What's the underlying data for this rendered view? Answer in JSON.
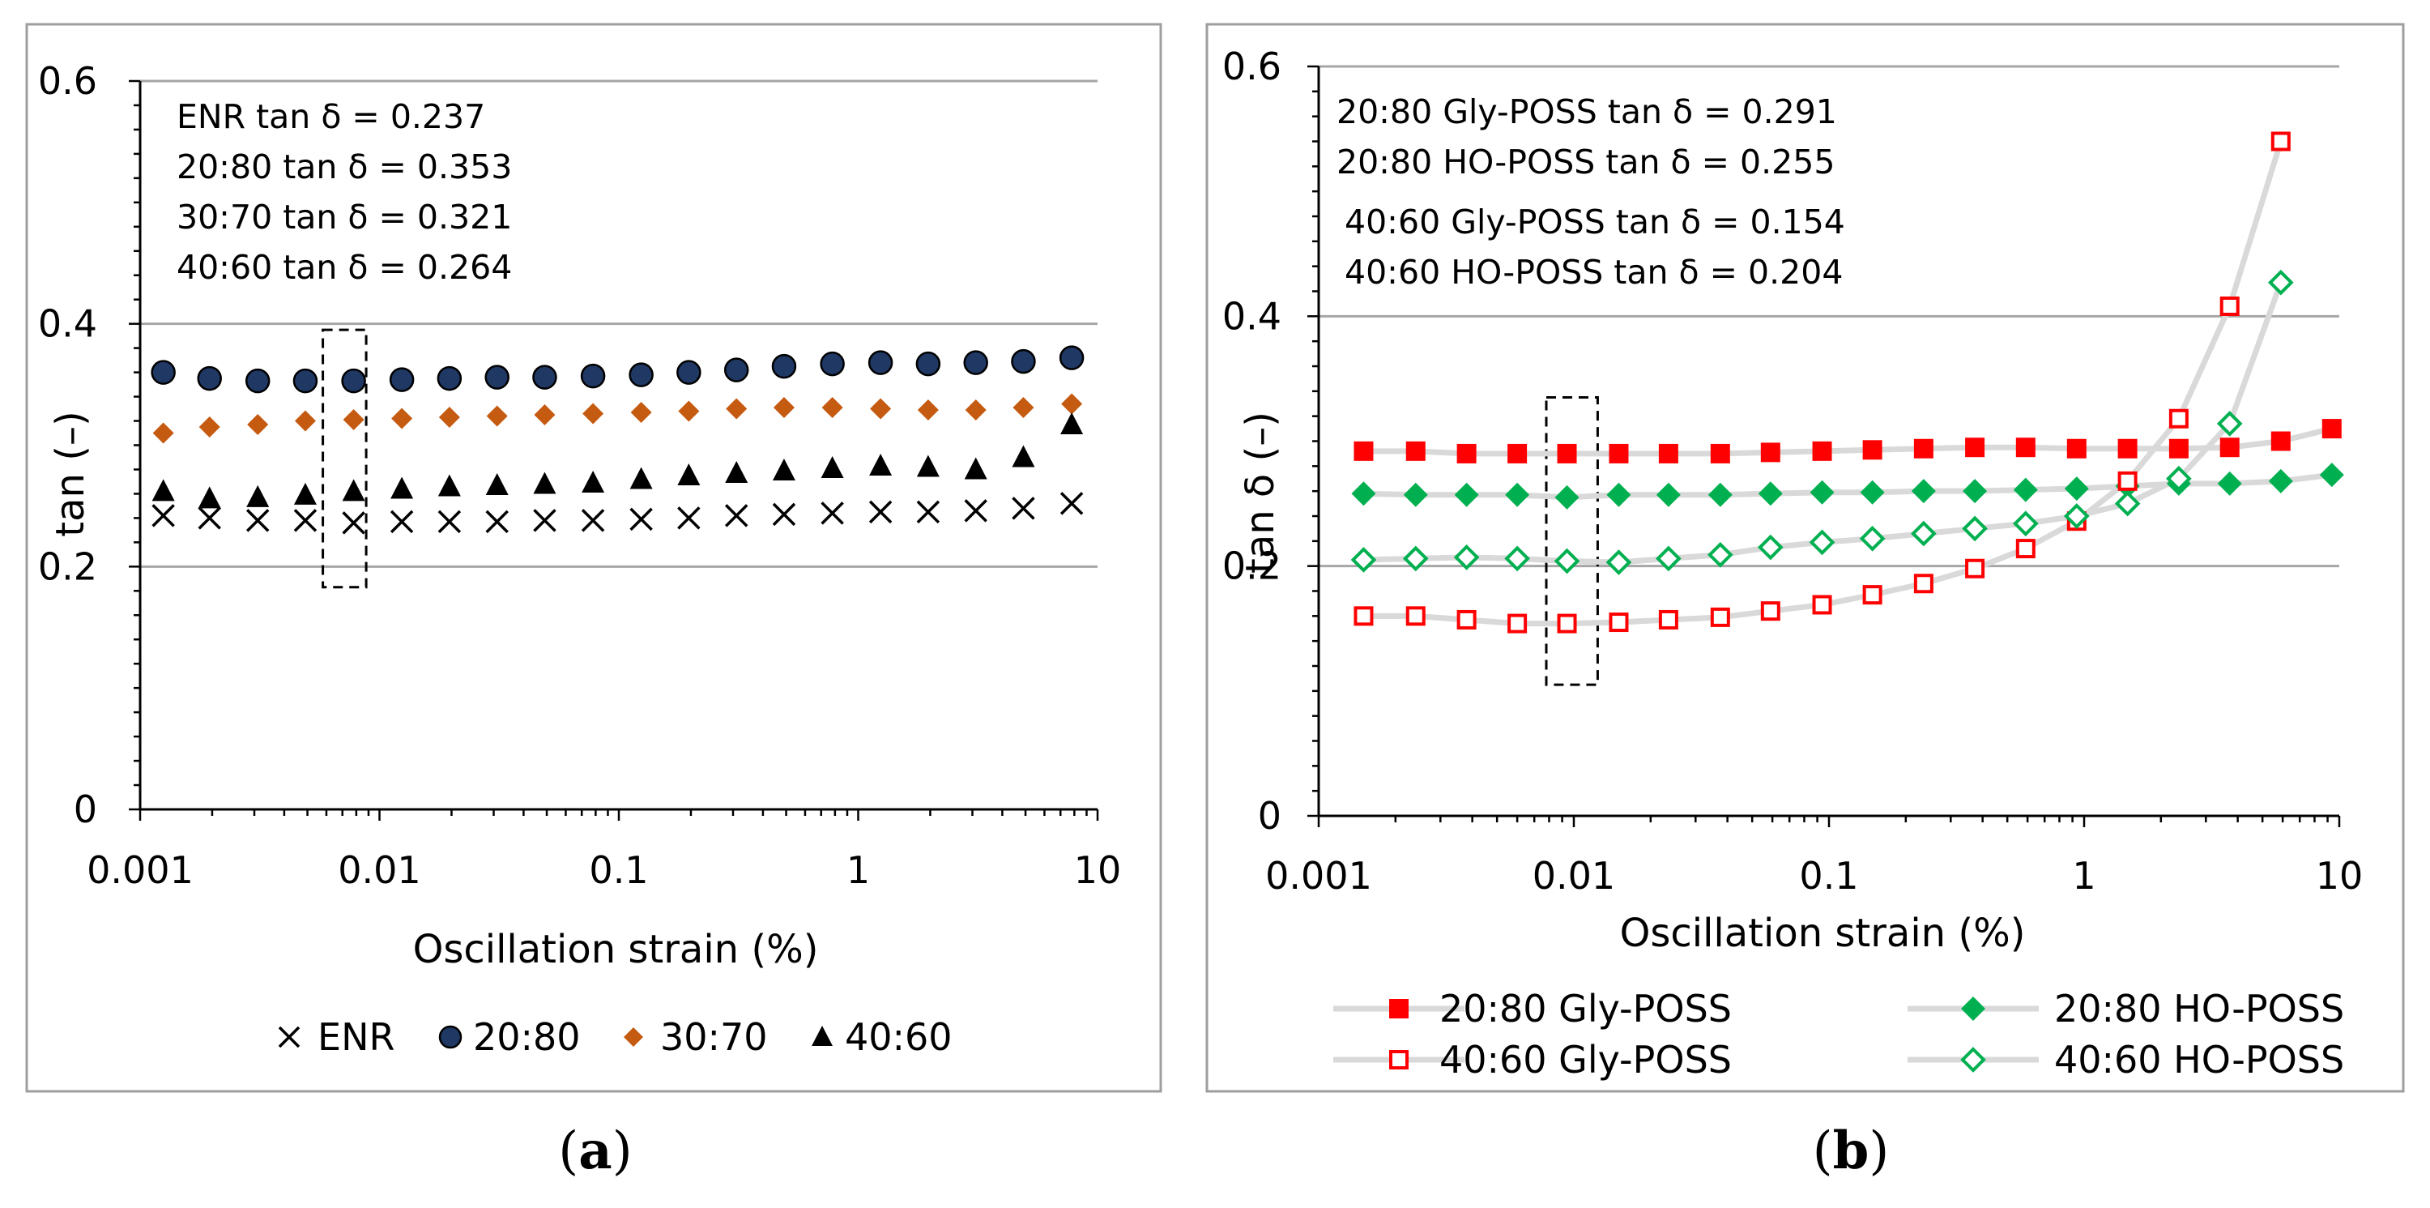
{
  "chart_data": [
    {
      "type": "scatter",
      "panel_label": "a",
      "xlabel": "Oscillation strain (%)",
      "ylabel": "tan  (–)",
      "xscale": "log",
      "xlim": [
        0.001,
        10
      ],
      "ylim": [
        0,
        0.6
      ],
      "y_major_ticks": [
        "0",
        "0.2",
        "0.4",
        "0.6"
      ],
      "x_ticks": [
        "0.001",
        "0.01",
        "0.1",
        "1",
        "10"
      ],
      "annotations": [
        "ENR tan δ = 0.237",
        "20:80 tan δ = 0.353",
        "30:70 tan δ = 0.321",
        "40:60 tan δ = 0.264"
      ],
      "highlight_strain_range": [
        0.0058,
        0.0088
      ],
      "highlight_y_range": [
        0.183,
        0.395
      ],
      "legend_position": "bottom",
      "series": [
        {
          "name": "ENR",
          "marker": "x",
          "color": "#000000",
          "x": [
            0.00125,
            0.00195,
            0.0031,
            0.0049,
            0.0078,
            0.0124,
            0.0196,
            0.031,
            0.049,
            0.078,
            0.124,
            0.196,
            0.31,
            0.49,
            0.78,
            1.24,
            1.96,
            3.1,
            4.9,
            7.8
          ],
          "y": [
            0.242,
            0.24,
            0.238,
            0.238,
            0.236,
            0.237,
            0.237,
            0.237,
            0.238,
            0.238,
            0.239,
            0.24,
            0.242,
            0.243,
            0.244,
            0.245,
            0.245,
            0.246,
            0.248,
            0.252
          ]
        },
        {
          "name": "20:80",
          "marker": "circle",
          "color": "#1f3864",
          "x": [
            0.00125,
            0.00195,
            0.0031,
            0.0049,
            0.0078,
            0.0124,
            0.0196,
            0.031,
            0.049,
            0.078,
            0.124,
            0.196,
            0.31,
            0.49,
            0.78,
            1.24,
            1.96,
            3.1,
            4.9,
            7.8
          ],
          "y": [
            0.36,
            0.355,
            0.353,
            0.353,
            0.353,
            0.354,
            0.355,
            0.356,
            0.356,
            0.357,
            0.358,
            0.36,
            0.362,
            0.365,
            0.367,
            0.368,
            0.367,
            0.368,
            0.369,
            0.372
          ]
        },
        {
          "name": "30:70",
          "marker": "diamond",
          "color": "#c55a11",
          "x": [
            0.00125,
            0.00195,
            0.0031,
            0.0049,
            0.0078,
            0.0124,
            0.0196,
            0.031,
            0.049,
            0.078,
            0.124,
            0.196,
            0.31,
            0.49,
            0.78,
            1.24,
            1.96,
            3.1,
            4.9,
            7.8
          ],
          "y": [
            0.31,
            0.315,
            0.317,
            0.32,
            0.321,
            0.322,
            0.323,
            0.324,
            0.325,
            0.326,
            0.327,
            0.328,
            0.33,
            0.331,
            0.331,
            0.33,
            0.329,
            0.329,
            0.331,
            0.334
          ]
        },
        {
          "name": "40:60",
          "marker": "triangle",
          "color": "#000000",
          "x": [
            0.00125,
            0.00195,
            0.0031,
            0.0049,
            0.0078,
            0.0124,
            0.0196,
            0.031,
            0.049,
            0.078,
            0.124,
            0.196,
            0.31,
            0.49,
            0.78,
            1.24,
            1.96,
            3.1,
            4.9,
            7.8
          ],
          "y": [
            0.262,
            0.256,
            0.257,
            0.259,
            0.262,
            0.264,
            0.266,
            0.267,
            0.268,
            0.269,
            0.272,
            0.275,
            0.277,
            0.279,
            0.281,
            0.283,
            0.282,
            0.28,
            0.29,
            0.317
          ]
        }
      ]
    },
    {
      "type": "scatter",
      "panel_label": "b",
      "xlabel": "Oscillation strain (%)",
      "ylabel": "tan δ (–)",
      "xscale": "log",
      "xlim": [
        0.001,
        10
      ],
      "ylim": [
        0,
        0.6
      ],
      "y_major_ticks": [
        "0",
        "0.2",
        "0.4",
        "0.6"
      ],
      "x_ticks": [
        "0.001",
        "0.01",
        "0.1",
        "1",
        "10"
      ],
      "annotations": [
        "20:80 Gly-POSS tan δ = 0.291",
        "20:80 HO-POSS tan δ =  0.255",
        "40:60 Gly-POSS tan δ = 0.154",
        "40:60 HO-POSS tan δ =  0.204"
      ],
      "highlight_strain_range": [
        0.0078,
        0.0124
      ],
      "highlight_y_range": [
        0.105,
        0.335
      ],
      "legend_position": "bottom",
      "series": [
        {
          "name": "20:80 Gly-POSS",
          "marker": "square-filled",
          "color": "#ff0000",
          "x": [
            0.0015,
            0.0024,
            0.0038,
            0.006,
            0.0094,
            0.015,
            0.0235,
            0.0375,
            0.059,
            0.094,
            0.148,
            0.235,
            0.373,
            0.59,
            0.935,
            1.48,
            2.35,
            3.72,
            5.9,
            9.35
          ],
          "y": [
            0.292,
            0.292,
            0.29,
            0.29,
            0.29,
            0.29,
            0.29,
            0.29,
            0.291,
            0.292,
            0.293,
            0.294,
            0.295,
            0.295,
            0.294,
            0.294,
            0.294,
            0.295,
            0.3,
            0.31
          ]
        },
        {
          "name": "20:80 HO-POSS",
          "marker": "diamond-filled",
          "color": "#00b050",
          "x": [
            0.0015,
            0.0024,
            0.0038,
            0.006,
            0.0094,
            0.015,
            0.0235,
            0.0375,
            0.059,
            0.094,
            0.148,
            0.235,
            0.373,
            0.59,
            0.935,
            1.48,
            2.35,
            3.72,
            5.9,
            9.35
          ],
          "y": [
            0.258,
            0.257,
            0.257,
            0.257,
            0.255,
            0.257,
            0.257,
            0.257,
            0.258,
            0.259,
            0.259,
            0.26,
            0.26,
            0.261,
            0.262,
            0.264,
            0.266,
            0.266,
            0.268,
            0.273
          ]
        },
        {
          "name": "40:60 Gly-POSS",
          "marker": "square-open",
          "color": "#ff0000",
          "x": [
            0.0015,
            0.0024,
            0.0038,
            0.006,
            0.0094,
            0.015,
            0.0235,
            0.0375,
            0.059,
            0.094,
            0.148,
            0.235,
            0.373,
            0.59,
            0.935,
            1.48,
            2.35,
            3.72,
            5.9
          ],
          "y": [
            0.16,
            0.16,
            0.157,
            0.154,
            0.154,
            0.155,
            0.157,
            0.159,
            0.164,
            0.169,
            0.177,
            0.186,
            0.198,
            0.214,
            0.236,
            0.268,
            0.318,
            0.408,
            0.54
          ]
        },
        {
          "name": "40:60 HO-POSS",
          "marker": "diamond-open",
          "color": "#00b050",
          "x": [
            0.0015,
            0.0024,
            0.0038,
            0.006,
            0.0094,
            0.015,
            0.0235,
            0.0375,
            0.059,
            0.094,
            0.148,
            0.235,
            0.373,
            0.59,
            0.935,
            1.48,
            2.35,
            3.72,
            5.9
          ],
          "y": [
            0.205,
            0.206,
            0.207,
            0.206,
            0.204,
            0.203,
            0.206,
            0.209,
            0.215,
            0.219,
            0.222,
            0.226,
            0.23,
            0.234,
            0.24,
            0.25,
            0.27,
            0.314,
            0.427
          ]
        }
      ]
    }
  ]
}
